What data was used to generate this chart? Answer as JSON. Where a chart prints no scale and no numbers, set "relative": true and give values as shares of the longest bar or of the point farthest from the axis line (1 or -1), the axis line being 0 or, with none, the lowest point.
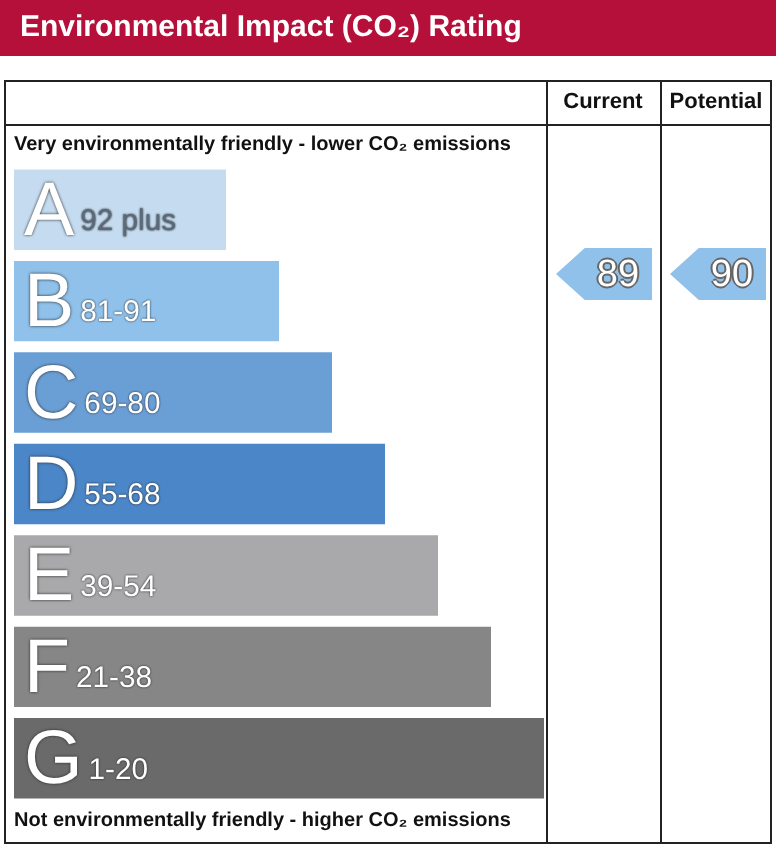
{
  "chart_data": {
    "type": "bar",
    "orientation": "horizontal",
    "relative": true,
    "title": "Environmental Impact (CO₂) Rating",
    "categories": [
      "A",
      "B",
      "C",
      "D",
      "E",
      "F",
      "G"
    ],
    "values": [
      0.4,
      0.5,
      0.6,
      0.7,
      0.8,
      0.9,
      1.0
    ],
    "colors": [
      "#c5dcf0",
      "#8fc1ea",
      "#6a9fd6",
      "#4a86c8",
      "#a9a9ab",
      "#868686",
      "#6a6a6b"
    ],
    "annotations": [
      "Very environmentally friendly - lower CO₂ emissions",
      "Not environmentally friendly - higher CO₂ emissions",
      "Current",
      "Potential",
      "89",
      "90",
      "92 plus",
      "81-91",
      "69-80",
      "55-68",
      "39-54",
      "21-38",
      "1-20"
    ],
    "legend": false
  }
}
